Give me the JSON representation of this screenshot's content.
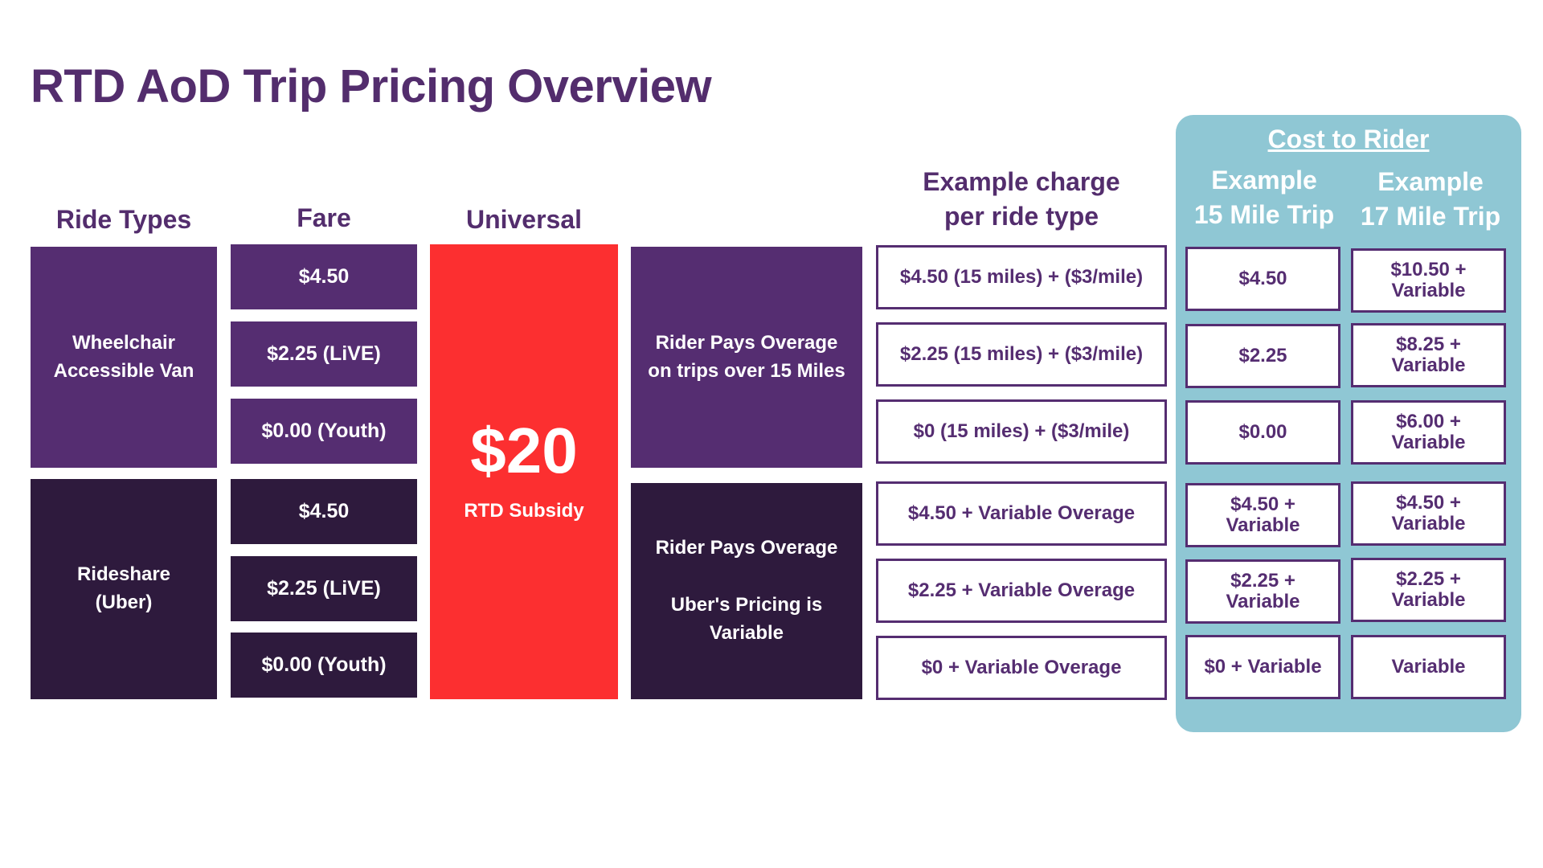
{
  "title": "RTD AoD Trip Pricing Overview",
  "headers": {
    "ride_types": "Ride Types",
    "fare": "Fare",
    "universal": "Universal",
    "example_charge": [
      "Example charge",
      "per ride type"
    ],
    "cost_to_rider": "Cost to Rider",
    "example_15": [
      "Example",
      "15 Mile Trip"
    ],
    "example_17": [
      "Example",
      "17 Mile Trip"
    ]
  },
  "ride_types": {
    "wheelchair": [
      "Wheelchair",
      "Accessible Van"
    ],
    "rideshare": [
      "Rideshare",
      "(Uber)"
    ]
  },
  "fares": {
    "wheelchair": [
      "$4.50",
      "$2.25 (LiVE)",
      "$0.00 (Youth)"
    ],
    "rideshare": [
      "$4.50",
      "$2.25 (LiVE)",
      "$0.00 (Youth)"
    ]
  },
  "subsidy": {
    "amount": "$20",
    "label": "RTD Subsidy"
  },
  "overage": {
    "wheelchair": [
      "Rider Pays Overage",
      "on trips over 15 Miles"
    ],
    "rideshare": [
      "Rider Pays Overage",
      "Uber's Pricing is",
      "Variable"
    ]
  },
  "example_charges": [
    "$4.50 (15 miles) + ($3/mile)",
    "$2.25 (15 miles) + ($3/mile)",
    "$0 (15 miles) + ($3/mile)",
    "$4.50 + Variable Overage",
    "$2.25 + Variable Overage",
    "$0 + Variable Overage"
  ],
  "cost_15_mile": [
    [
      "$4.50"
    ],
    [
      "$2.25"
    ],
    [
      "$0.00"
    ],
    [
      "$4.50 +",
      "Variable"
    ],
    [
      "$2.25 +",
      "Variable"
    ],
    [
      "$0 + Variable"
    ]
  ],
  "cost_17_mile": [
    [
      "$10.50 +",
      "Variable"
    ],
    [
      "$8.25 +",
      "Variable"
    ],
    [
      "$6.00 +",
      "Variable"
    ],
    [
      "$4.50 +",
      "Variable"
    ],
    [
      "$2.25 +",
      "Variable"
    ],
    [
      "Variable"
    ]
  ],
  "colors": {
    "title_purple": "#532d6d",
    "van_purple": "#552d71",
    "rideshare_dark": "#2e1a3d",
    "subsidy_red": "#fc2f30",
    "cost_panel_blue": "#8fc7d4"
  }
}
